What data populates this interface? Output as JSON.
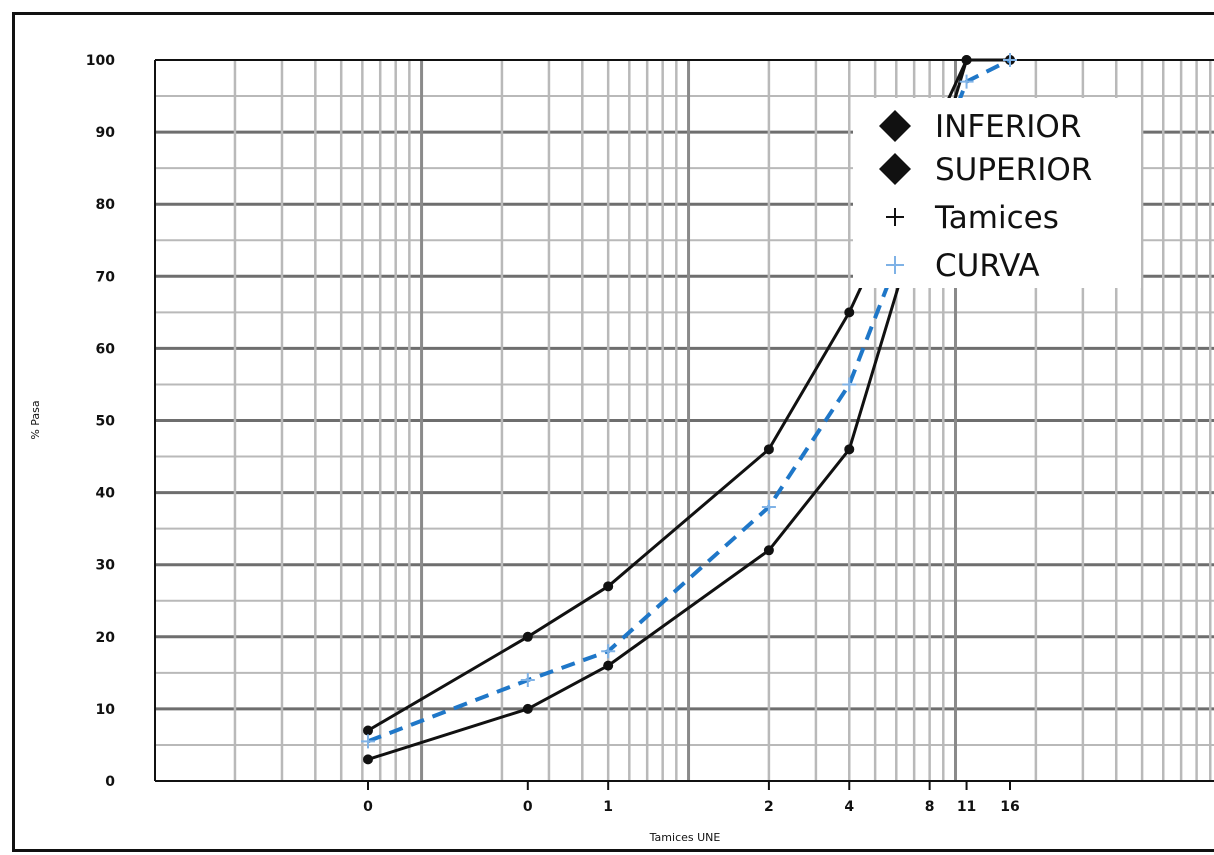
{
  "chart_data": {
    "type": "line",
    "title": "",
    "xlabel": "Tamices UNE",
    "ylabel": "% Pasa",
    "ylim": [
      0,
      100
    ],
    "yticks": [
      "0",
      "10",
      "20",
      "30",
      "40",
      "50",
      "60",
      "70",
      "80",
      "90",
      "100"
    ],
    "x_tick_labels": [
      "0",
      "0",
      "1",
      "2",
      "4",
      "8",
      "11",
      "16"
    ],
    "x_scale": "log",
    "grid": true,
    "legend_position": "top-right",
    "legend": [
      {
        "name": "INFERIOR",
        "marker": "diamond",
        "color": "#111111"
      },
      {
        "name": "SUPERIOR",
        "marker": "diamond",
        "color": "#111111"
      },
      {
        "name": "Tamices",
        "marker": "plus",
        "color": "#111111"
      },
      {
        "name": "CURVA",
        "marker": "plus",
        "color": "#7fb2e6"
      }
    ],
    "series": [
      {
        "name": "INFERIOR",
        "color": "#111111",
        "style": "solid",
        "x": [
          0.063,
          0.25,
          0.5,
          2,
          4,
          11,
          16
        ],
        "y": [
          3,
          10,
          16,
          32,
          46,
          100,
          100
        ]
      },
      {
        "name": "SUPERIOR",
        "color": "#111111",
        "style": "solid",
        "x": [
          0.063,
          0.25,
          0.5,
          2,
          4,
          11,
          16
        ],
        "y": [
          7,
          20,
          27,
          46,
          65,
          100,
          100
        ]
      },
      {
        "name": "CURVA",
        "color": "#1f77c8",
        "style": "dashed",
        "x": [
          0.063,
          0.25,
          0.5,
          2,
          4,
          11,
          16
        ],
        "y": [
          5.5,
          14,
          18,
          38,
          55,
          97,
          100
        ]
      }
    ]
  }
}
